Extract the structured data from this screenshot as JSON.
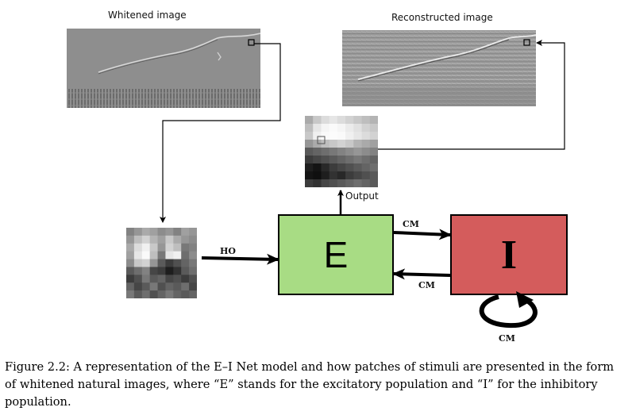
{
  "labels": {
    "whitened": "Whitened image",
    "reconstructed": "Reconstructed image",
    "output": "Output",
    "ho": "HO",
    "cm_top": "CM",
    "cm_bottom": "CM",
    "cm_self": "CM"
  },
  "boxes": {
    "e": {
      "text": "E",
      "color": "#a8dc84"
    },
    "i": {
      "text": "I",
      "color": "#d45c5c"
    }
  },
  "caption": "Figure 2.2: A representation of the E–I Net model and how patches of stimuli are presented in the form of whitened natural images, where “E” stands for the excitatory population and “I” for the inhibitory population.",
  "patches": {
    "input": [
      [
        130,
        150,
        170,
        160,
        140,
        150,
        130,
        160,
        150
      ],
      [
        150,
        190,
        210,
        180,
        160,
        200,
        170,
        150,
        140
      ],
      [
        170,
        220,
        240,
        200,
        150,
        210,
        190,
        120,
        130
      ],
      [
        160,
        230,
        250,
        190,
        120,
        230,
        240,
        110,
        140
      ],
      [
        140,
        200,
        210,
        150,
        90,
        60,
        80,
        100,
        120
      ],
      [
        90,
        110,
        130,
        70,
        60,
        30,
        50,
        90,
        110
      ],
      [
        60,
        80,
        120,
        90,
        100,
        70,
        80,
        60,
        80
      ],
      [
        100,
        70,
        90,
        120,
        80,
        100,
        90,
        110,
        70
      ],
      [
        120,
        90,
        110,
        80,
        100,
        120,
        100,
        90,
        100
      ]
    ],
    "output": [
      [
        170,
        200,
        220,
        230,
        220,
        210,
        200,
        190,
        180
      ],
      [
        190,
        230,
        245,
        250,
        245,
        235,
        225,
        210,
        200
      ],
      [
        200,
        240,
        250,
        252,
        250,
        240,
        230,
        220,
        210
      ],
      [
        150,
        170,
        190,
        200,
        210,
        200,
        180,
        170,
        160
      ],
      [
        90,
        100,
        110,
        120,
        130,
        140,
        150,
        140,
        130
      ],
      [
        60,
        70,
        80,
        90,
        100,
        110,
        120,
        110,
        100
      ],
      [
        30,
        20,
        40,
        60,
        70,
        80,
        90,
        100,
        110
      ],
      [
        20,
        15,
        30,
        50,
        40,
        60,
        70,
        80,
        90
      ],
      [
        60,
        50,
        70,
        80,
        90,
        100,
        110,
        100,
        90
      ]
    ]
  }
}
